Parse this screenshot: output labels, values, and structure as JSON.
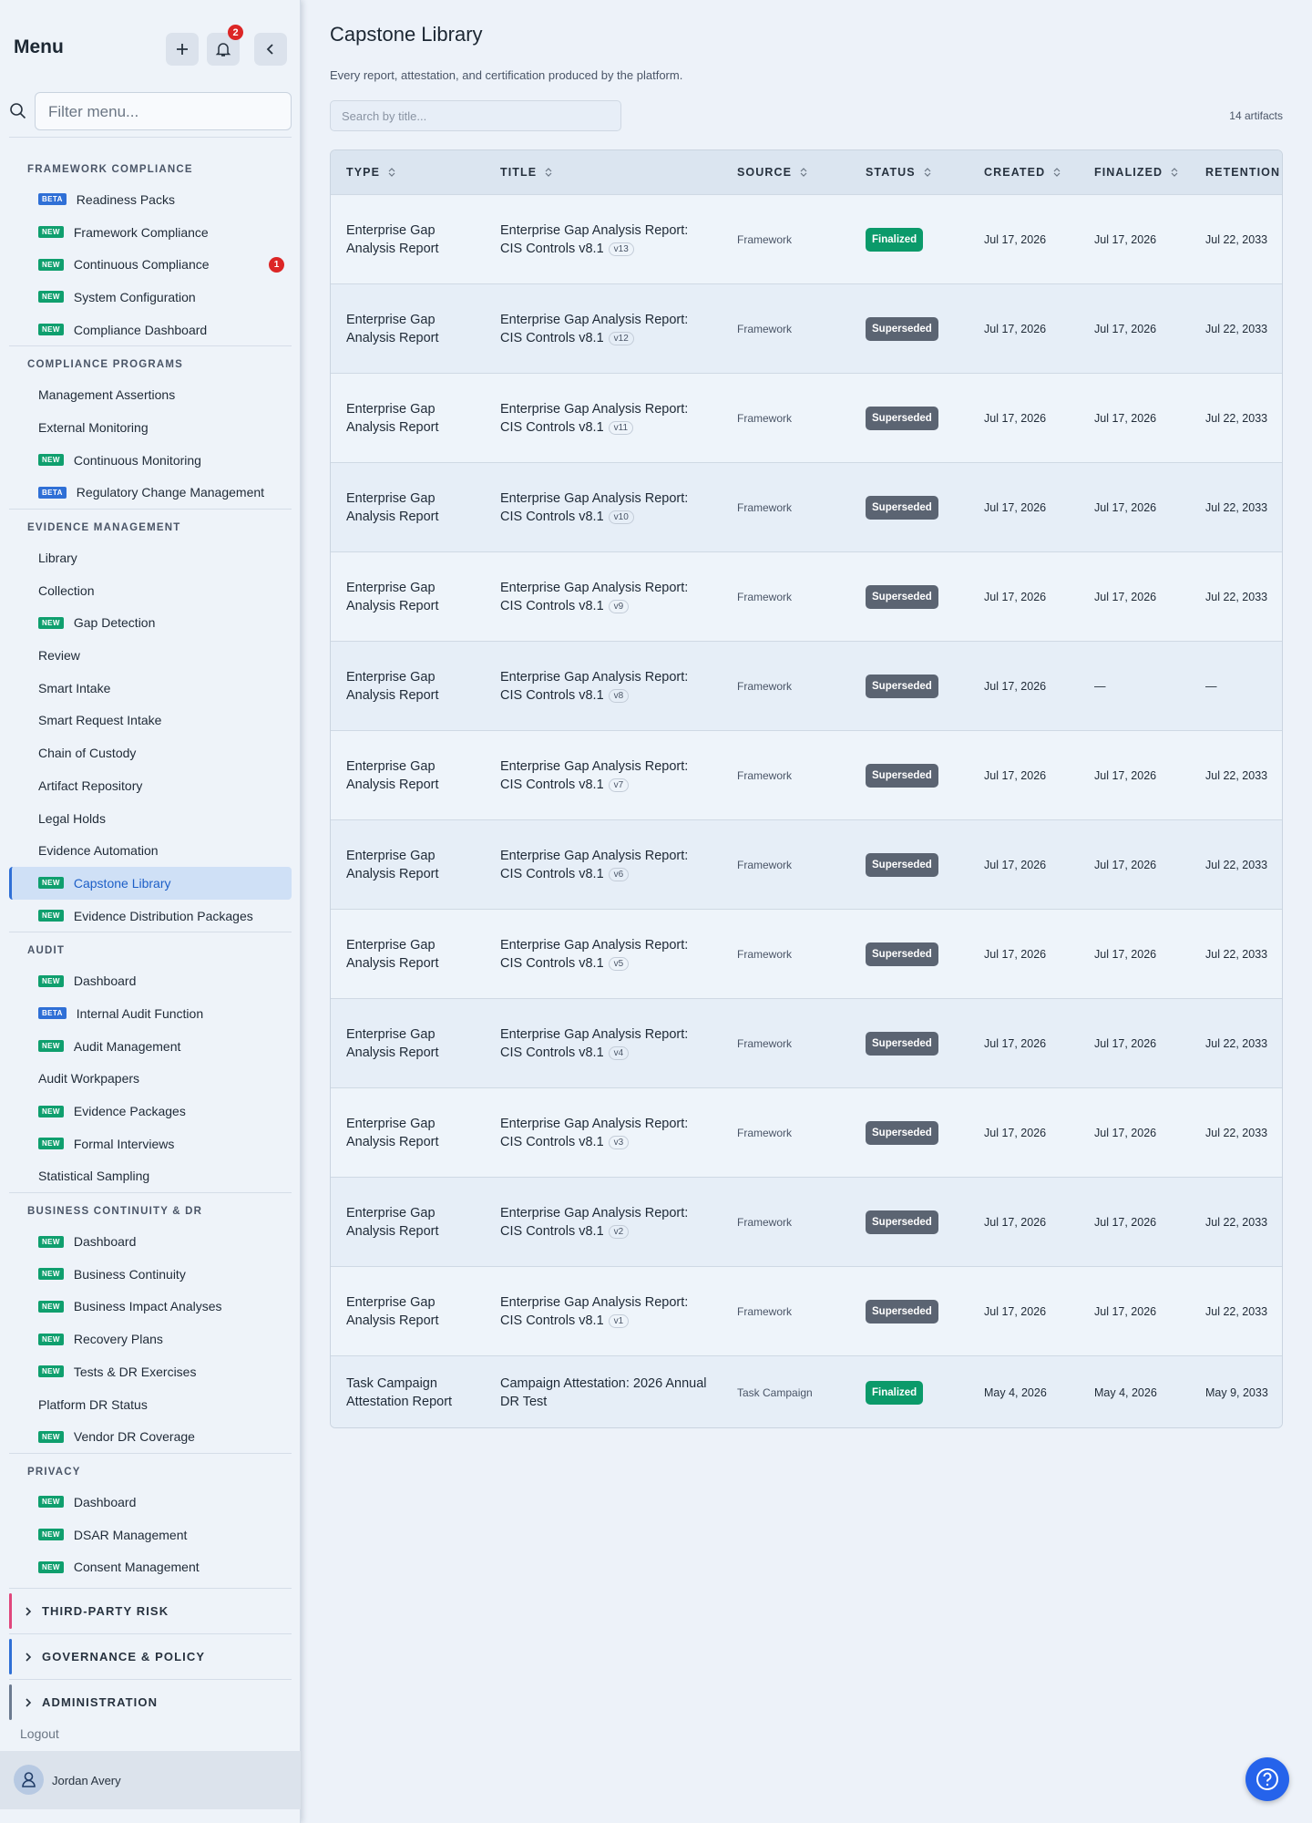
{
  "menu": {
    "title": "Menu",
    "notification_count": "2",
    "filter_placeholder": "Filter menu...",
    "sections": [
      {
        "title": "FRAMEWORK COMPLIANCE",
        "items": [
          {
            "label": "Readiness Packs",
            "badge": "BETA"
          },
          {
            "label": "Framework Compliance",
            "badge": "NEW"
          },
          {
            "label": "Continuous Compliance",
            "badge": "NEW",
            "count": "1"
          },
          {
            "label": "System Configuration",
            "badge": "NEW"
          },
          {
            "label": "Compliance Dashboard",
            "badge": "NEW"
          }
        ]
      },
      {
        "title": "COMPLIANCE PROGRAMS",
        "items": [
          {
            "label": "Management Assertions"
          },
          {
            "label": "External Monitoring"
          },
          {
            "label": "Continuous Monitoring",
            "badge": "NEW"
          },
          {
            "label": "Regulatory Change Management",
            "badge": "BETA"
          }
        ]
      },
      {
        "title": "EVIDENCE MANAGEMENT",
        "items": [
          {
            "label": "Library"
          },
          {
            "label": "Collection"
          },
          {
            "label": "Gap Detection",
            "badge": "NEW"
          },
          {
            "label": "Review"
          },
          {
            "label": "Smart Intake"
          },
          {
            "label": "Smart Request Intake"
          },
          {
            "label": "Chain of Custody"
          },
          {
            "label": "Artifact Repository"
          },
          {
            "label": "Legal Holds"
          },
          {
            "label": "Evidence Automation"
          },
          {
            "label": "Capstone Library",
            "badge": "NEW",
            "active": true
          },
          {
            "label": "Evidence Distribution Packages",
            "badge": "NEW"
          }
        ]
      },
      {
        "title": "AUDIT",
        "items": [
          {
            "label": "Dashboard",
            "badge": "NEW"
          },
          {
            "label": "Internal Audit Function",
            "badge": "BETA"
          },
          {
            "label": "Audit Management",
            "badge": "NEW"
          },
          {
            "label": "Audit Workpapers"
          },
          {
            "label": "Evidence Packages",
            "badge": "NEW"
          },
          {
            "label": "Formal Interviews",
            "badge": "NEW"
          },
          {
            "label": "Statistical Sampling"
          }
        ]
      },
      {
        "title": "BUSINESS CONTINUITY & DR",
        "items": [
          {
            "label": "Dashboard",
            "badge": "NEW"
          },
          {
            "label": "Business Continuity",
            "badge": "NEW"
          },
          {
            "label": "Business Impact Analyses",
            "badge": "NEW"
          },
          {
            "label": "Recovery Plans",
            "badge": "NEW"
          },
          {
            "label": "Tests & DR Exercises",
            "badge": "NEW"
          },
          {
            "label": "Platform DR Status"
          },
          {
            "label": "Vendor DR Coverage",
            "badge": "NEW"
          }
        ]
      },
      {
        "title": "PRIVACY",
        "items": [
          {
            "label": "Dashboard",
            "badge": "NEW"
          },
          {
            "label": "DSAR Management",
            "badge": "NEW"
          },
          {
            "label": "Consent Management",
            "badge": "NEW"
          }
        ]
      }
    ],
    "collapsed_groups": [
      {
        "label": "THIRD-PARTY RISK",
        "color": "#e0467c"
      },
      {
        "label": "GOVERNANCE & POLICY",
        "color": "#2f6fd6"
      },
      {
        "label": "ADMINISTRATION",
        "color": "#6b7a90"
      }
    ],
    "logout": "Logout",
    "user": "Jordan Avery"
  },
  "main": {
    "title": "Capstone Library",
    "subtitle": "Every report, attestation, and certification produced by the platform.",
    "search_placeholder": "Search by title...",
    "count": "14 artifacts",
    "table": {
      "columns": [
        "TYPE",
        "TITLE",
        "SOURCE",
        "STATUS",
        "CREATED",
        "FINALIZED",
        "RETENTION"
      ],
      "rows": [
        {
          "type": "Enterprise Gap Analysis Report",
          "title": "Enterprise Gap Analysis Report: CIS Controls v8.1",
          "version": "v13",
          "source": "Framework",
          "status": "Finalized",
          "created": "Jul 17, 2026",
          "finalized": "Jul 17, 2026",
          "retention": "Jul 22, 2033"
        },
        {
          "type": "Enterprise Gap Analysis Report",
          "title": "Enterprise Gap Analysis Report: CIS Controls v8.1",
          "version": "v12",
          "source": "Framework",
          "status": "Superseded",
          "created": "Jul 17, 2026",
          "finalized": "Jul 17, 2026",
          "retention": "Jul 22, 2033"
        },
        {
          "type": "Enterprise Gap Analysis Report",
          "title": "Enterprise Gap Analysis Report: CIS Controls v8.1",
          "version": "v11",
          "source": "Framework",
          "status": "Superseded",
          "created": "Jul 17, 2026",
          "finalized": "Jul 17, 2026",
          "retention": "Jul 22, 2033"
        },
        {
          "type": "Enterprise Gap Analysis Report",
          "title": "Enterprise Gap Analysis Report: CIS Controls v8.1",
          "version": "v10",
          "source": "Framework",
          "status": "Superseded",
          "created": "Jul 17, 2026",
          "finalized": "Jul 17, 2026",
          "retention": "Jul 22, 2033"
        },
        {
          "type": "Enterprise Gap Analysis Report",
          "title": "Enterprise Gap Analysis Report: CIS Controls v8.1",
          "version": "v9",
          "source": "Framework",
          "status": "Superseded",
          "created": "Jul 17, 2026",
          "finalized": "Jul 17, 2026",
          "retention": "Jul 22, 2033"
        },
        {
          "type": "Enterprise Gap Analysis Report",
          "title": "Enterprise Gap Analysis Report: CIS Controls v8.1",
          "version": "v8",
          "source": "Framework",
          "status": "Superseded",
          "created": "Jul 17, 2026",
          "finalized": "—",
          "retention": "—"
        },
        {
          "type": "Enterprise Gap Analysis Report",
          "title": "Enterprise Gap Analysis Report: CIS Controls v8.1",
          "version": "v7",
          "source": "Framework",
          "status": "Superseded",
          "created": "Jul 17, 2026",
          "finalized": "Jul 17, 2026",
          "retention": "Jul 22, 2033"
        },
        {
          "type": "Enterprise Gap Analysis Report",
          "title": "Enterprise Gap Analysis Report: CIS Controls v8.1",
          "version": "v6",
          "source": "Framework",
          "status": "Superseded",
          "created": "Jul 17, 2026",
          "finalized": "Jul 17, 2026",
          "retention": "Jul 22, 2033"
        },
        {
          "type": "Enterprise Gap Analysis Report",
          "title": "Enterprise Gap Analysis Report: CIS Controls v8.1",
          "version": "v5",
          "source": "Framework",
          "status": "Superseded",
          "created": "Jul 17, 2026",
          "finalized": "Jul 17, 2026",
          "retention": "Jul 22, 2033"
        },
        {
          "type": "Enterprise Gap Analysis Report",
          "title": "Enterprise Gap Analysis Report: CIS Controls v8.1",
          "version": "v4",
          "source": "Framework",
          "status": "Superseded",
          "created": "Jul 17, 2026",
          "finalized": "Jul 17, 2026",
          "retention": "Jul 22, 2033"
        },
        {
          "type": "Enterprise Gap Analysis Report",
          "title": "Enterprise Gap Analysis Report: CIS Controls v8.1",
          "version": "v3",
          "source": "Framework",
          "status": "Superseded",
          "created": "Jul 17, 2026",
          "finalized": "Jul 17, 2026",
          "retention": "Jul 22, 2033"
        },
        {
          "type": "Enterprise Gap Analysis Report",
          "title": "Enterprise Gap Analysis Report: CIS Controls v8.1",
          "version": "v2",
          "source": "Framework",
          "status": "Superseded",
          "created": "Jul 17, 2026",
          "finalized": "Jul 17, 2026",
          "retention": "Jul 22, 2033"
        },
        {
          "type": "Enterprise Gap Analysis Report",
          "title": "Enterprise Gap Analysis Report: CIS Controls v8.1",
          "version": "v1",
          "source": "Framework",
          "status": "Superseded",
          "created": "Jul 17, 2026",
          "finalized": "Jul 17, 2026",
          "retention": "Jul 22, 2033"
        },
        {
          "type": "Task Campaign Attestation Report",
          "title": "Campaign Attestation: 2026 Annual DR Test",
          "source": "Task Campaign",
          "status": "Finalized",
          "created": "May 4, 2026",
          "finalized": "May 4, 2026",
          "retention": "May 9, 2033"
        }
      ]
    }
  }
}
